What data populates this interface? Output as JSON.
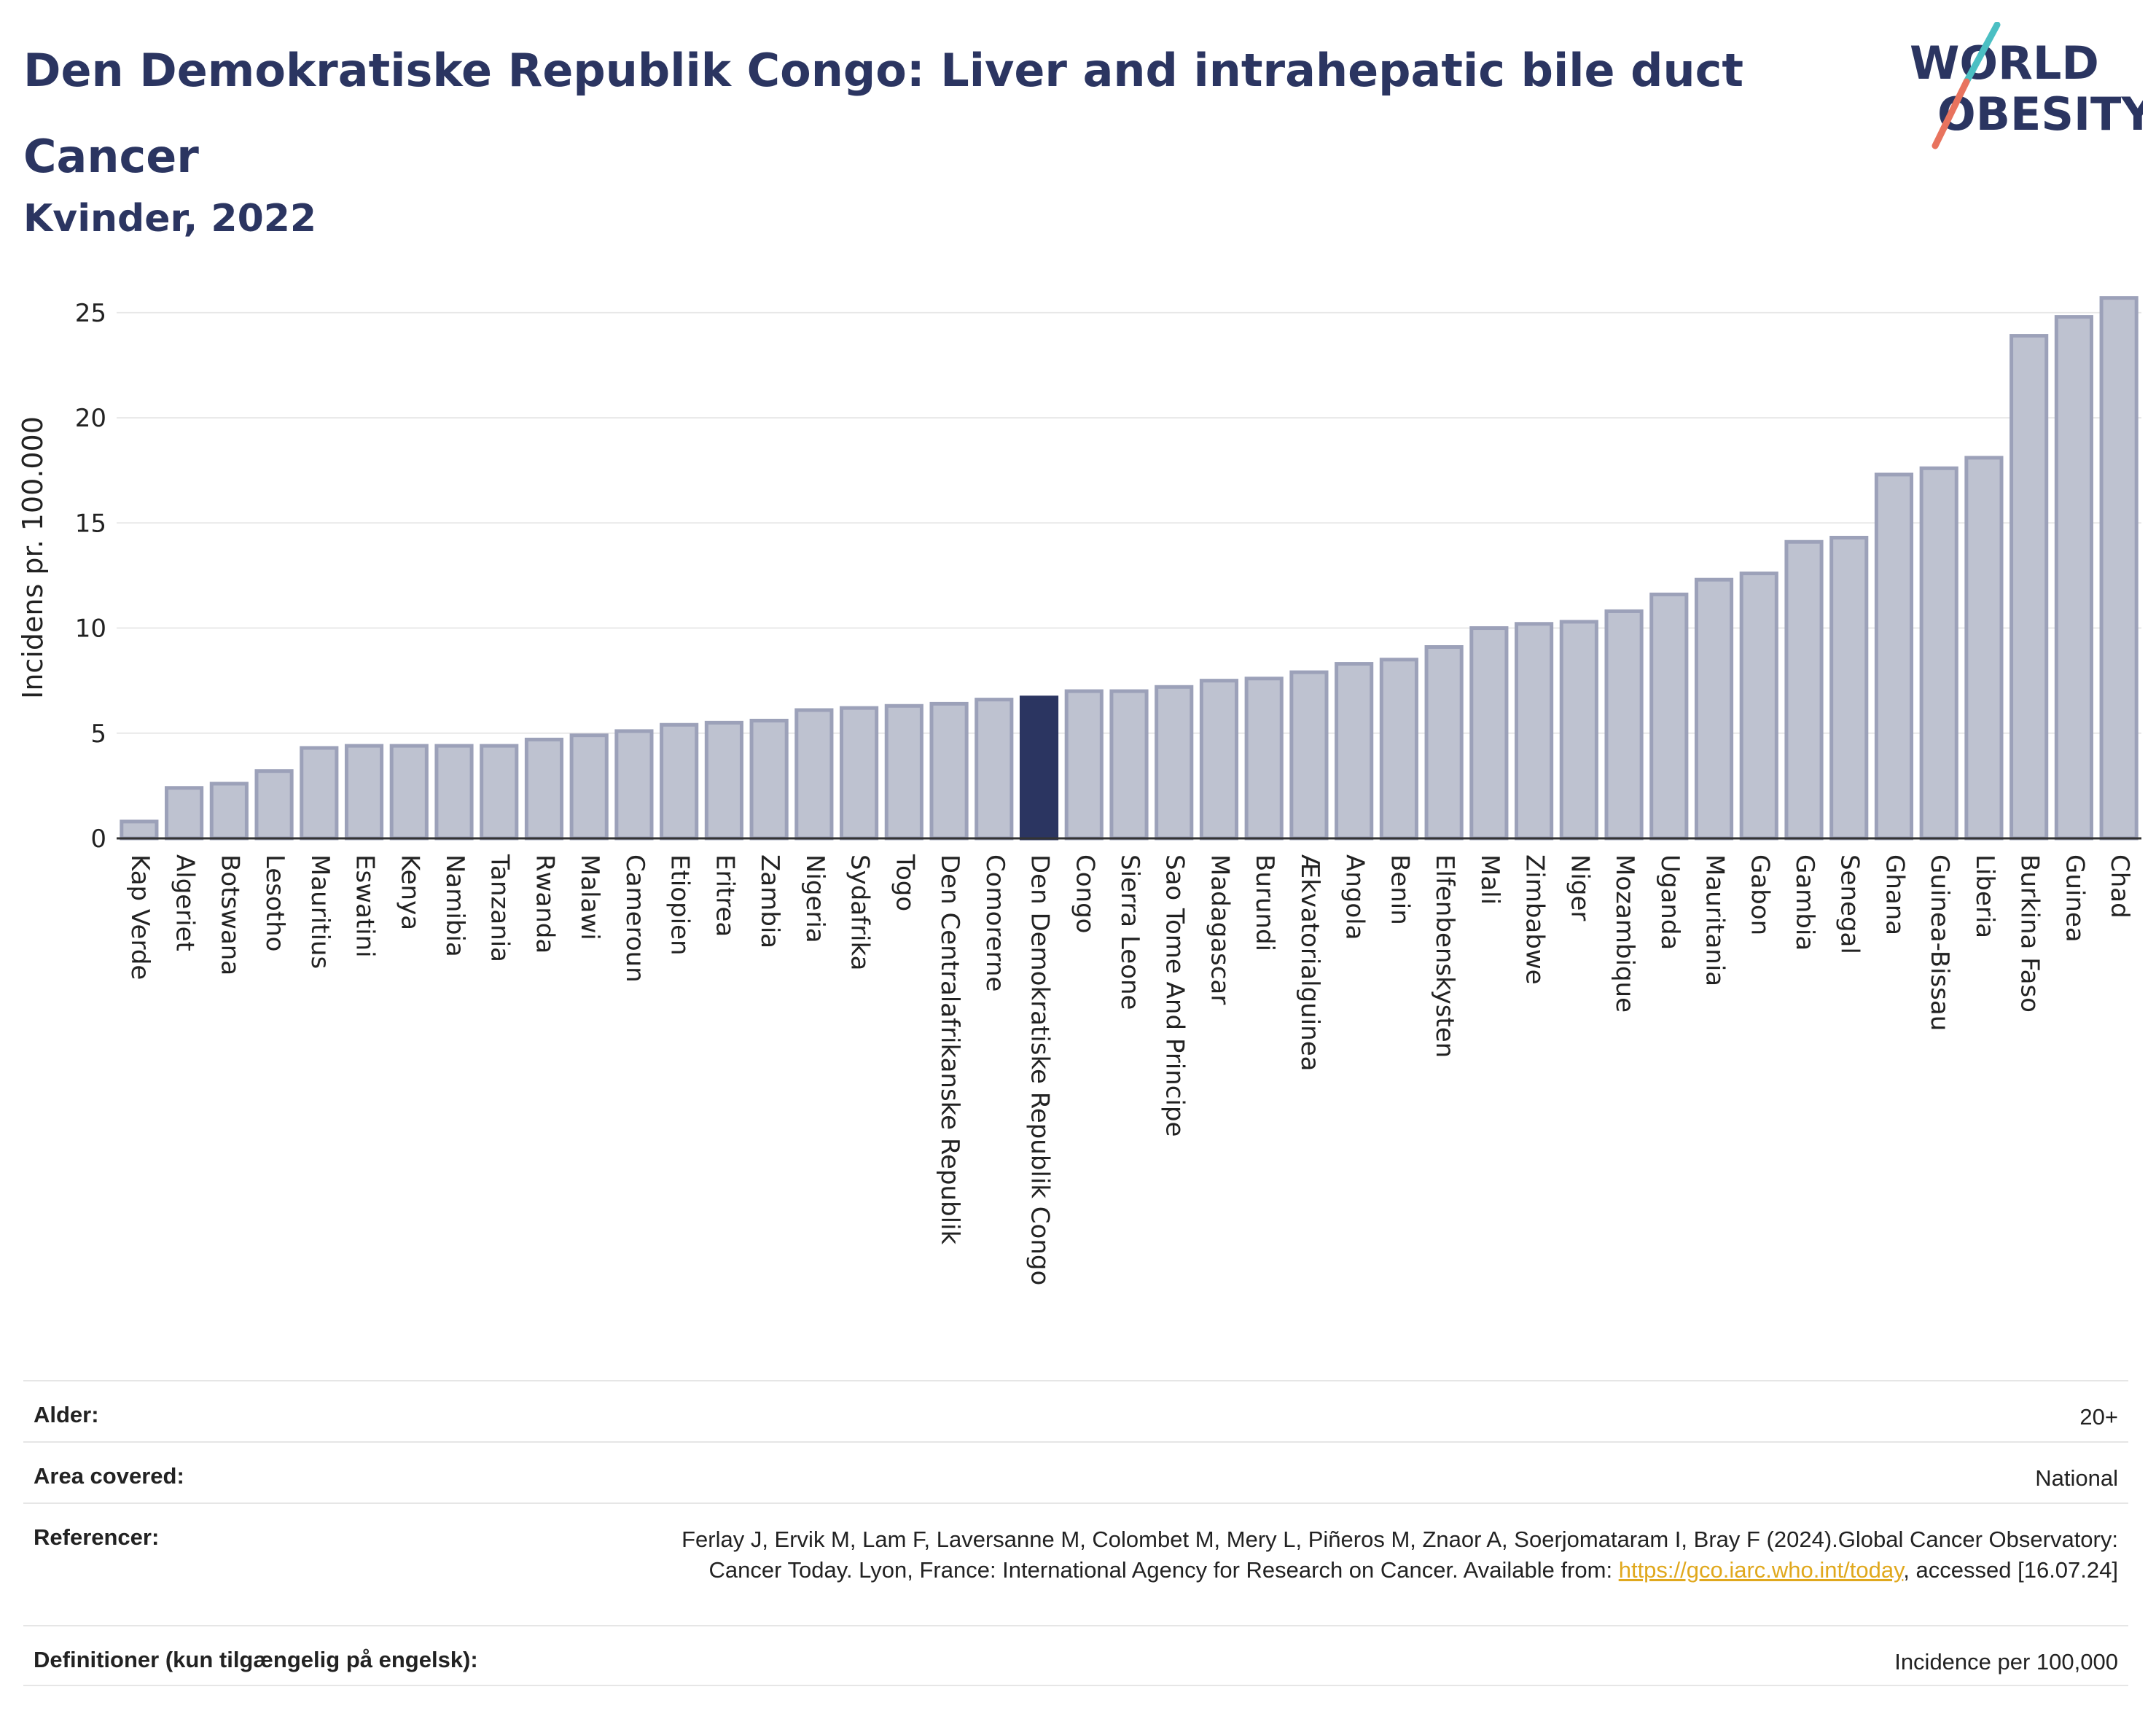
{
  "title": "Den Demokratiske Republik Congo: Liver and intrahepatic bile duct Cancer",
  "subtitle": "Kvinder, 2022",
  "logo": {
    "line1": "WORLD",
    "line2": "OBESITY",
    "accent": "#4bbfc3",
    "accent2": "#e8735e"
  },
  "colors": {
    "bar": "#bec2d0",
    "bar_border": "#9ca1b9",
    "highlight": "#2b3561",
    "grid": "#e8e8e8"
  },
  "chart_data": {
    "type": "bar",
    "title": "Den Demokratiske Republik Congo: Liver and intrahepatic bile duct Cancer",
    "subtitle": "Kvinder, 2022",
    "xlabel": "",
    "ylabel": "Incidens pr. 100.000",
    "ylim": [
      0,
      26
    ],
    "yticks": [
      0,
      5,
      10,
      15,
      20,
      25
    ],
    "grid": true,
    "highlight": "Den Demokratiske Republik Congo",
    "categories": [
      "Kap Verde",
      "Algeriet",
      "Botswana",
      "Lesotho",
      "Mauritius",
      "Eswatini",
      "Kenya",
      "Namibia",
      "Tanzania",
      "Rwanda",
      "Malawi",
      "Cameroun",
      "Etiopien",
      "Eritrea",
      "Zambia",
      "Nigeria",
      "Sydafrika",
      "Togo",
      "Den Centralafrikanske Republik",
      "Comorerne",
      "Den Demokratiske Republik Congo",
      "Congo",
      "Sierra Leone",
      "Sao Tome And Principe",
      "Madagascar",
      "Burundi",
      "Ækvatorialguinea",
      "Angola",
      "Benin",
      "Elfenbenskysten",
      "Mali",
      "Zimbabwe",
      "Niger",
      "Mozambique",
      "Uganda",
      "Mauritania",
      "Gabon",
      "Gambia",
      "Senegal",
      "Ghana",
      "Guinea-Bissau",
      "Liberia",
      "Burkina Faso",
      "Guinea",
      "Chad"
    ],
    "values": [
      0.8,
      2.4,
      2.6,
      3.2,
      4.3,
      4.4,
      4.4,
      4.4,
      4.4,
      4.7,
      4.9,
      5.1,
      5.4,
      5.5,
      5.6,
      6.1,
      6.2,
      6.3,
      6.4,
      6.6,
      6.7,
      7.0,
      7.0,
      7.2,
      7.5,
      7.6,
      7.9,
      8.3,
      8.5,
      9.1,
      10.0,
      10.2,
      10.3,
      10.8,
      11.6,
      12.3,
      12.6,
      14.1,
      14.3,
      17.3,
      17.6,
      18.1,
      23.9,
      24.8,
      25.7
    ]
  },
  "info": {
    "rows": [
      {
        "key": "Alder:",
        "value": "20+"
      },
      {
        "key": "Area covered:",
        "value": "National"
      },
      {
        "key": "Referencer:",
        "value_pre": "Ferlay J, Ervik M, Lam F, Laversanne M, Colombet M, Mery L, Piñeros M, Znaor A, Soerjomataram I, Bray F (2024).Global Cancer Observatory: Cancer Today. Lyon, France: International Agency for Research on Cancer. Available from: ",
        "link": "https://gco.iarc.who.int/today",
        "value_post": ", accessed [16.07.24]"
      },
      {
        "key": "Definitioner (kun tilgængelig på engelsk):",
        "value": "Incidence per 100,000"
      }
    ]
  }
}
